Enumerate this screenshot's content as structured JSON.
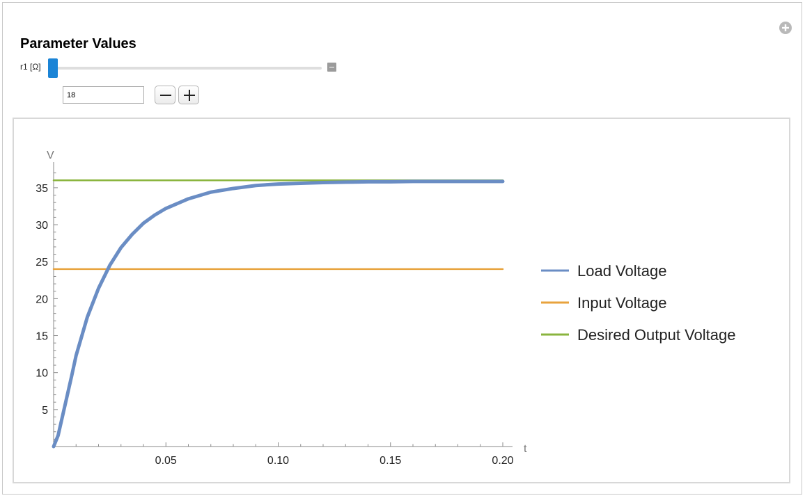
{
  "panel": {
    "title": "Parameter Values",
    "slider_label": "r1 [Ω]",
    "value": "18",
    "slider_fraction": 0.0
  },
  "icons": {
    "add": "plus-circle-icon",
    "toggle": "collapse-toggle-icon",
    "minus": "minus-icon",
    "plus": "plus-icon"
  },
  "chart_data": {
    "type": "line",
    "xlabel": "t",
    "ylabel": "V",
    "xlim": [
      0,
      0.2
    ],
    "ylim": [
      0,
      38
    ],
    "xticks": [
      0.05,
      0.1,
      0.15,
      0.2
    ],
    "xtick_labels": [
      "0.05",
      "0.10",
      "0.15",
      "0.20"
    ],
    "yticks": [
      5,
      10,
      15,
      20,
      25,
      30,
      35
    ],
    "ytick_labels": [
      "5",
      "10",
      "15",
      "20",
      "25",
      "30",
      "35"
    ],
    "grid": false,
    "legend_position": "right",
    "series": [
      {
        "name": "Load Voltage",
        "color": "#6a8dc4",
        "x": [
          0,
          0.002,
          0.005,
          0.008,
          0.01,
          0.015,
          0.02,
          0.025,
          0.03,
          0.035,
          0.04,
          0.045,
          0.05,
          0.06,
          0.07,
          0.08,
          0.09,
          0.1,
          0.11,
          0.12,
          0.13,
          0.14,
          0.15,
          0.16,
          0.17,
          0.18,
          0.19,
          0.2
        ],
        "y": [
          0,
          1.5,
          5.5,
          9.5,
          12.3,
          17.5,
          21.4,
          24.5,
          26.9,
          28.7,
          30.2,
          31.3,
          32.2,
          33.5,
          34.4,
          34.9,
          35.3,
          35.5,
          35.6,
          35.7,
          35.75,
          35.8,
          35.8,
          35.85,
          35.85,
          35.85,
          35.85,
          35.85
        ]
      },
      {
        "name": "Input Voltage",
        "color": "#e8a33d",
        "x": [
          0,
          0.2
        ],
        "y": [
          24,
          24
        ]
      },
      {
        "name": "Desired Output Voltage",
        "color": "#8ab43e",
        "x": [
          0,
          0.2
        ],
        "y": [
          36,
          36
        ]
      }
    ]
  }
}
